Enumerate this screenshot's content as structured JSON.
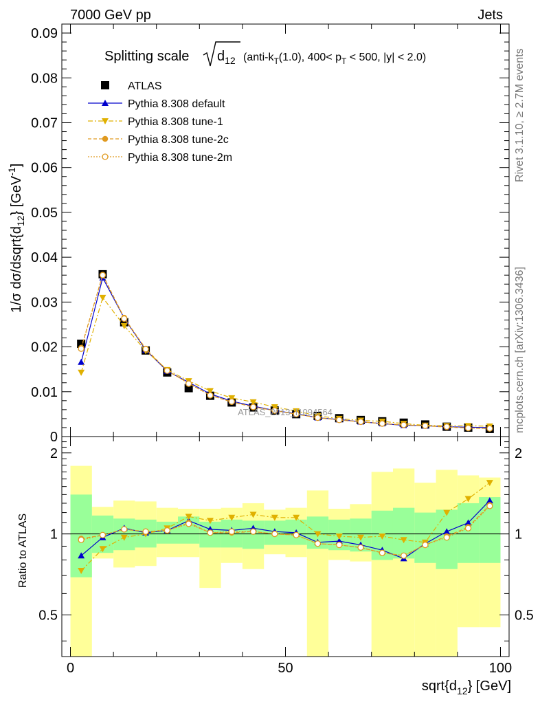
{
  "header": {
    "left": "7000 GeV pp",
    "right": "Jets"
  },
  "side_labels": {
    "rivet": "Rivet 3.1.10, ≥ 2.7M events",
    "mcplots": "mcplots.cern.ch [arXiv:1306.3436]"
  },
  "watermark": "ATLAS_2013_I1094564",
  "chart_data": {
    "type": "scatter",
    "title_main": "Splitting scale",
    "title_root": "d",
    "title_root_sub": "12",
    "title_detail": "(anti-k",
    "title_detail_sub": "T",
    "title_detail_2": "(1.0), 400< p",
    "title_detail_sub2": "T",
    "title_detail_3": " < 500, |y| < 2.0)",
    "ylabel": "1/σ dσ/dsqrt{d",
    "ylabel_sub": "12",
    "ylabel_2": "} [GeV",
    "ylabel_sup": "-1",
    "ylabel_3": "]",
    "ratio_ylabel": "Ratio to ATLAS",
    "xlabel": "sqrt{d",
    "xlabel_sub": "12",
    "xlabel_2": "} [GeV]",
    "xlim": [
      -2,
      102
    ],
    "ylim": [
      0,
      0.092
    ],
    "ratio_ylim": [
      0.35,
      2.3
    ],
    "x_ticks": [
      "0",
      "50",
      "100"
    ],
    "y_ticks": [
      "0",
      "0.01",
      "0.02",
      "0.03",
      "0.04",
      "0.05",
      "0.06",
      "0.07",
      "0.08",
      "0.09"
    ],
    "ratio_ticks": [
      "0.5",
      "1",
      "2"
    ],
    "x": [
      2.5,
      7.5,
      12.5,
      17.5,
      22.5,
      27.5,
      32.5,
      37.5,
      42.5,
      47.5,
      52.5,
      57.5,
      62.5,
      67.5,
      72.5,
      77.5,
      82.5,
      87.5,
      92.5,
      97.5
    ],
    "bin_edges": [
      0,
      5,
      10,
      15,
      20,
      25,
      30,
      35,
      40,
      45,
      50,
      55,
      60,
      65,
      70,
      75,
      80,
      85,
      90,
      95,
      100
    ],
    "data": {
      "name": "ATLAS",
      "values": [
        0.0207,
        0.0362,
        0.0255,
        0.0192,
        0.0143,
        0.0108,
        0.0091,
        0.0076,
        0.0065,
        0.0058,
        0.005,
        0.0046,
        0.0041,
        0.0037,
        0.0034,
        0.0031,
        0.0027,
        0.0022,
        0.002,
        0.0017
      ]
    },
    "series": [
      {
        "name": "Pythia 8.308 default",
        "color": "#0000cc",
        "marker": "triangle-up",
        "dash": "solid",
        "values": [
          0.0166,
          0.0354,
          0.0264,
          0.0193,
          0.0146,
          0.0121,
          0.0095,
          0.0079,
          0.0068,
          0.0058,
          0.0051,
          0.0042,
          0.0038,
          0.0033,
          0.0029,
          0.0025,
          0.0024,
          0.0022,
          0.0021,
          0.002
        ]
      },
      {
        "name": "Pythia 8.308 tune-1",
        "color": "#e0b000",
        "marker": "triangle-down",
        "dash": "7,3,2,3",
        "values": [
          0.0143,
          0.031,
          0.0247,
          0.0191,
          0.0149,
          0.0124,
          0.0102,
          0.0086,
          0.0077,
          0.0066,
          0.0057,
          0.0046,
          0.004,
          0.0036,
          0.0034,
          0.0029,
          0.0025,
          0.0024,
          0.0024,
          0.0023
        ]
      },
      {
        "name": "Pythia 8.308 tune-2c",
        "color": "#e09a20",
        "marker": "circle",
        "dash": "5,3",
        "values": [
          0.0198,
          0.0361,
          0.0265,
          0.0196,
          0.0147,
          0.0119,
          0.0092,
          0.0077,
          0.0066,
          0.0058,
          0.005,
          0.0042,
          0.0037,
          0.0033,
          0.0029,
          0.0026,
          0.0024,
          0.0021,
          0.0019,
          0.0018
        ]
      },
      {
        "name": "Pythia 8.308 tune-2m",
        "color": "#e09a20",
        "marker": "open-circle",
        "dash": "2,2",
        "values": [
          0.0196,
          0.036,
          0.0263,
          0.0195,
          0.0147,
          0.0118,
          0.0092,
          0.0078,
          0.0066,
          0.0058,
          0.005,
          0.0042,
          0.0037,
          0.0033,
          0.0029,
          0.0026,
          0.0024,
          0.0022,
          0.0019,
          0.0018
        ]
      }
    ],
    "ratio_series": [
      [
        0.83,
        0.97,
        1.05,
        1.01,
        1.03,
        1.12,
        1.04,
        1.03,
        1.05,
        1.02,
        1.01,
        0.93,
        0.94,
        0.91,
        0.87,
        0.81,
        0.92,
        1.02,
        1.1,
        1.33
      ],
      [
        0.73,
        0.88,
        0.97,
        1.0,
        1.05,
        1.16,
        1.12,
        1.15,
        1.18,
        1.15,
        1.15,
        1.0,
        0.98,
        0.97,
        0.98,
        0.95,
        0.93,
        1.2,
        1.35,
        1.55
      ],
      [
        0.96,
        0.99,
        1.04,
        1.02,
        1.03,
        1.1,
        1.01,
        1.01,
        1.02,
        1.0,
        0.99,
        0.92,
        0.91,
        0.89,
        0.85,
        0.83,
        0.91,
        0.98,
        1.06,
        1.28
      ],
      [
        0.95,
        0.99,
        1.04,
        1.02,
        1.03,
        1.09,
        1.01,
        1.02,
        1.02,
        1.0,
        0.99,
        0.92,
        0.91,
        0.89,
        0.85,
        0.83,
        0.91,
        0.97,
        1.05,
        1.27
      ]
    ],
    "band_green": [
      [
        0.69,
        1.4
      ],
      [
        0.85,
        1.17
      ],
      [
        0.87,
        1.14
      ],
      [
        0.89,
        1.13
      ],
      [
        0.92,
        1.11
      ],
      [
        0.92,
        1.16
      ],
      [
        0.89,
        1.11
      ],
      [
        0.89,
        1.13
      ],
      [
        0.88,
        1.12
      ],
      [
        0.91,
        1.12
      ],
      [
        0.91,
        1.13
      ],
      [
        0.88,
        1.16
      ],
      [
        0.87,
        1.13
      ],
      [
        0.86,
        1.14
      ],
      [
        0.8,
        1.22
      ],
      [
        0.81,
        1.25
      ],
      [
        0.78,
        1.2
      ],
      [
        0.74,
        1.23
      ],
      [
        0.78,
        1.3
      ],
      [
        0.78,
        1.37
      ]
    ],
    "band_yellow": [
      [
        0.0,
        1.79
      ],
      [
        0.81,
        1.26
      ],
      [
        0.75,
        1.33
      ],
      [
        0.76,
        1.32
      ],
      [
        0.82,
        1.25
      ],
      [
        0.82,
        1.24
      ],
      [
        0.63,
        1.24
      ],
      [
        0.78,
        1.25
      ],
      [
        0.74,
        1.3
      ],
      [
        0.84,
        1.23
      ],
      [
        0.82,
        1.25
      ],
      [
        0.0,
        1.45
      ],
      [
        0.8,
        1.24
      ],
      [
        0.79,
        1.29
      ],
      [
        0.0,
        1.7
      ],
      [
        0.0,
        1.75
      ],
      [
        0.0,
        1.55
      ],
      [
        0.0,
        1.73
      ],
      [
        0.45,
        1.65
      ],
      [
        0.45,
        1.62
      ]
    ],
    "ratio_reference": 1,
    "legend_placement": "top-left",
    "grid": false
  }
}
